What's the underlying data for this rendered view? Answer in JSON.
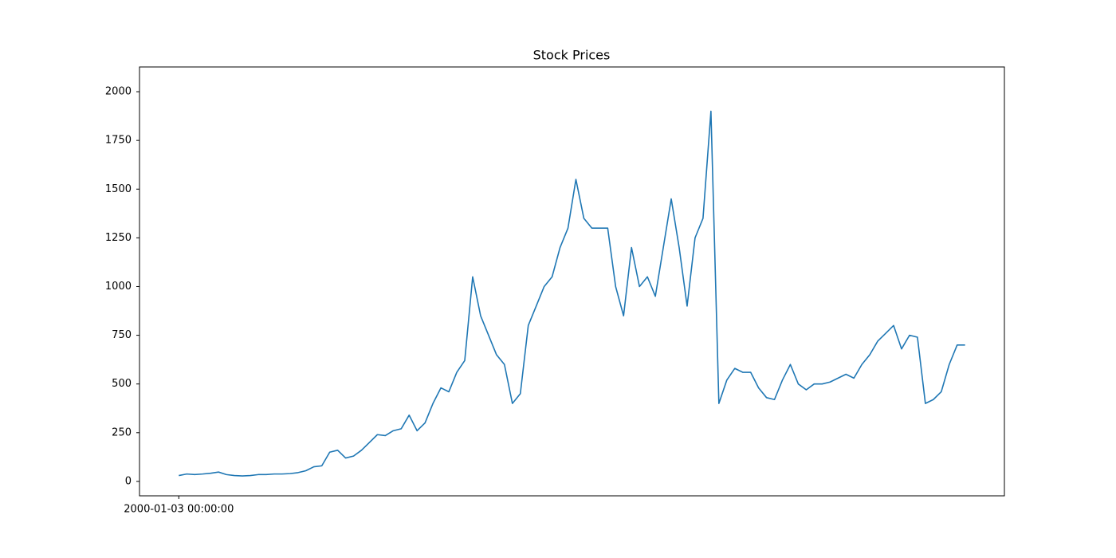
{
  "chart_data": {
    "type": "line",
    "title": "Stock Prices",
    "categories": [
      "2000-01-03 00:00:00",
      null,
      null,
      null,
      null,
      null,
      null,
      null,
      null,
      null,
      null,
      null,
      null,
      null,
      null,
      null,
      null,
      null,
      null,
      null,
      null,
      null,
      null,
      null,
      null,
      null,
      null,
      null,
      null,
      null,
      null,
      null,
      null,
      null,
      null,
      null,
      null,
      null,
      null,
      null,
      null,
      null,
      null,
      null,
      null,
      null,
      null,
      null,
      null,
      null,
      null,
      null,
      null,
      null,
      null,
      null,
      null,
      null,
      null,
      null,
      null,
      null,
      null,
      null,
      null,
      null,
      null,
      null,
      null,
      null,
      null,
      null,
      null,
      null,
      null,
      null,
      null,
      null,
      null,
      null,
      null,
      null,
      null,
      null,
      null,
      null,
      null,
      null,
      null,
      null,
      null,
      null,
      null,
      null,
      null,
      null,
      null,
      null,
      null,
      null
    ],
    "values": [
      30,
      38,
      35,
      38,
      42,
      48,
      35,
      30,
      28,
      30,
      35,
      35,
      38,
      38,
      40,
      45,
      55,
      75,
      80,
      150,
      160,
      120,
      130,
      160,
      200,
      240,
      235,
      260,
      270,
      340,
      260,
      300,
      400,
      480,
      460,
      560,
      620,
      1050,
      850,
      750,
      650,
      600,
      400,
      450,
      800,
      900,
      1000,
      1050,
      1200,
      1300,
      1550,
      1350,
      1300,
      1300,
      1300,
      1000,
      850,
      1200,
      1000,
      1050,
      950,
      1200,
      1450,
      1200,
      900,
      1250,
      1350,
      1900,
      400,
      520,
      580,
      560,
      560,
      480,
      430,
      420,
      520,
      600,
      500,
      470,
      500,
      500,
      510,
      530,
      550,
      530,
      600,
      650,
      720,
      760,
      800,
      680,
      750,
      740,
      400,
      420,
      460,
      600,
      700,
      700
    ],
    "color": "#1f77b4",
    "ylim": [
      -74,
      2127
    ],
    "yticks": [
      0,
      250,
      500,
      750,
      1000,
      1250,
      1500,
      1750,
      2000
    ],
    "grid": false
  }
}
